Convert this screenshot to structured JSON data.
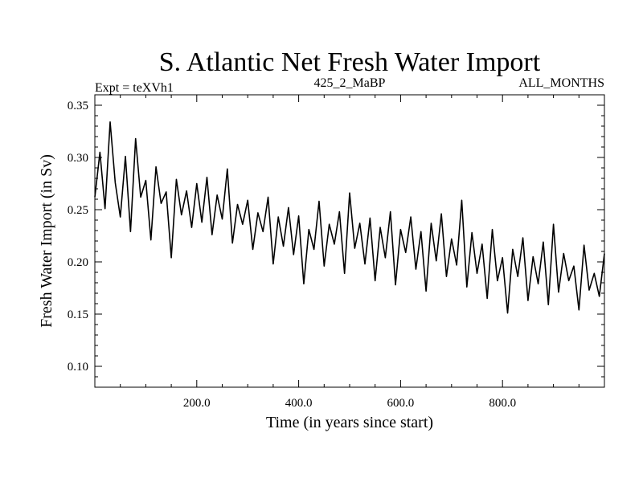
{
  "chart_data": {
    "type": "line",
    "title": "S. Atlantic Net Fresh Water Import",
    "subtitle_left": "Expt = teXVh1",
    "subtitle_center": "425_2_MaBP",
    "subtitle_right": "ALL_MONTHS",
    "xlabel": "Time (in years since start)",
    "ylabel": "Fresh Water Import (in Sv)",
    "xlim": [
      0,
      1000
    ],
    "ylim": [
      0.08,
      0.36
    ],
    "xticks": [
      200,
      400,
      600,
      800
    ],
    "xtick_labels": [
      "200.0",
      "400.0",
      "600.0",
      "800.0"
    ],
    "yticks": [
      0.1,
      0.15,
      0.2,
      0.25,
      0.3,
      0.35
    ],
    "ytick_labels": [
      "0.10",
      "0.15",
      "0.20",
      "0.25",
      "0.30",
      "0.35"
    ],
    "series": [
      {
        "name": "Net Fresh Water Import",
        "x": [
          0,
          10,
          20,
          30,
          40,
          50,
          60,
          70,
          80,
          90,
          100,
          110,
          120,
          130,
          140,
          150,
          160,
          170,
          180,
          190,
          200,
          210,
          220,
          230,
          240,
          250,
          260,
          270,
          280,
          290,
          300,
          310,
          320,
          330,
          340,
          350,
          360,
          370,
          380,
          390,
          400,
          410,
          420,
          430,
          440,
          450,
          460,
          470,
          480,
          490,
          500,
          510,
          520,
          530,
          540,
          550,
          560,
          570,
          580,
          590,
          600,
          610,
          620,
          630,
          640,
          650,
          660,
          670,
          680,
          690,
          700,
          710,
          720,
          730,
          740,
          750,
          760,
          770,
          780,
          790,
          800,
          810,
          820,
          830,
          840,
          850,
          860,
          870,
          880,
          890,
          900,
          910,
          920,
          930,
          940,
          950,
          960,
          970,
          980,
          990,
          1000
        ],
        "values": [
          0.262,
          0.305,
          0.251,
          0.334,
          0.276,
          0.243,
          0.301,
          0.229,
          0.318,
          0.262,
          0.278,
          0.221,
          0.291,
          0.256,
          0.267,
          0.204,
          0.279,
          0.245,
          0.268,
          0.233,
          0.275,
          0.238,
          0.281,
          0.226,
          0.264,
          0.241,
          0.289,
          0.218,
          0.255,
          0.236,
          0.259,
          0.212,
          0.247,
          0.229,
          0.262,
          0.198,
          0.243,
          0.215,
          0.252,
          0.207,
          0.244,
          0.179,
          0.231,
          0.212,
          0.258,
          0.196,
          0.236,
          0.217,
          0.248,
          0.189,
          0.266,
          0.213,
          0.237,
          0.198,
          0.242,
          0.182,
          0.233,
          0.204,
          0.248,
          0.178,
          0.231,
          0.209,
          0.243,
          0.193,
          0.229,
          0.172,
          0.237,
          0.201,
          0.246,
          0.186,
          0.222,
          0.197,
          0.259,
          0.176,
          0.228,
          0.189,
          0.217,
          0.165,
          0.231,
          0.182,
          0.204,
          0.151,
          0.212,
          0.186,
          0.223,
          0.163,
          0.205,
          0.179,
          0.219,
          0.159,
          0.236,
          0.171,
          0.208,
          0.182,
          0.196,
          0.154,
          0.216,
          0.173,
          0.189,
          0.167,
          0.208
        ]
      }
    ]
  }
}
